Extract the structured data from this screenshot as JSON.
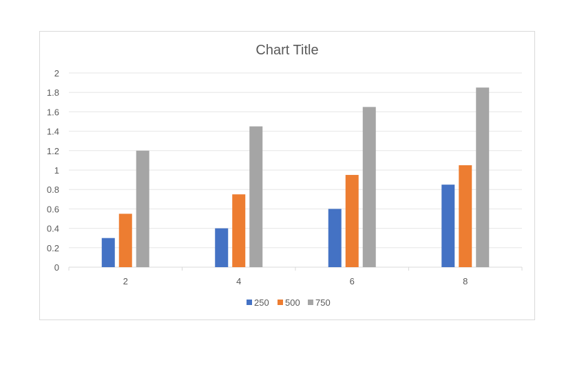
{
  "chart_data": {
    "type": "bar",
    "title": "Chart Title",
    "categories": [
      "2",
      "4",
      "6",
      "8"
    ],
    "series": [
      {
        "name": "250",
        "color": "#4472c4",
        "values": [
          0.3,
          0.4,
          0.6,
          0.85
        ]
      },
      {
        "name": "500",
        "color": "#ed7d31",
        "values": [
          0.55,
          0.75,
          0.95,
          1.05
        ]
      },
      {
        "name": "750",
        "color": "#a5a5a5",
        "values": [
          1.2,
          1.45,
          1.65,
          1.85
        ]
      }
    ],
    "ylim": [
      0,
      2
    ],
    "yticks": [
      "0",
      "0.2",
      "0.4",
      "0.6",
      "0.8",
      "1",
      "1.2",
      "1.4",
      "1.6",
      "1.8",
      "2"
    ],
    "grid": true,
    "legend_position": "bottom"
  }
}
